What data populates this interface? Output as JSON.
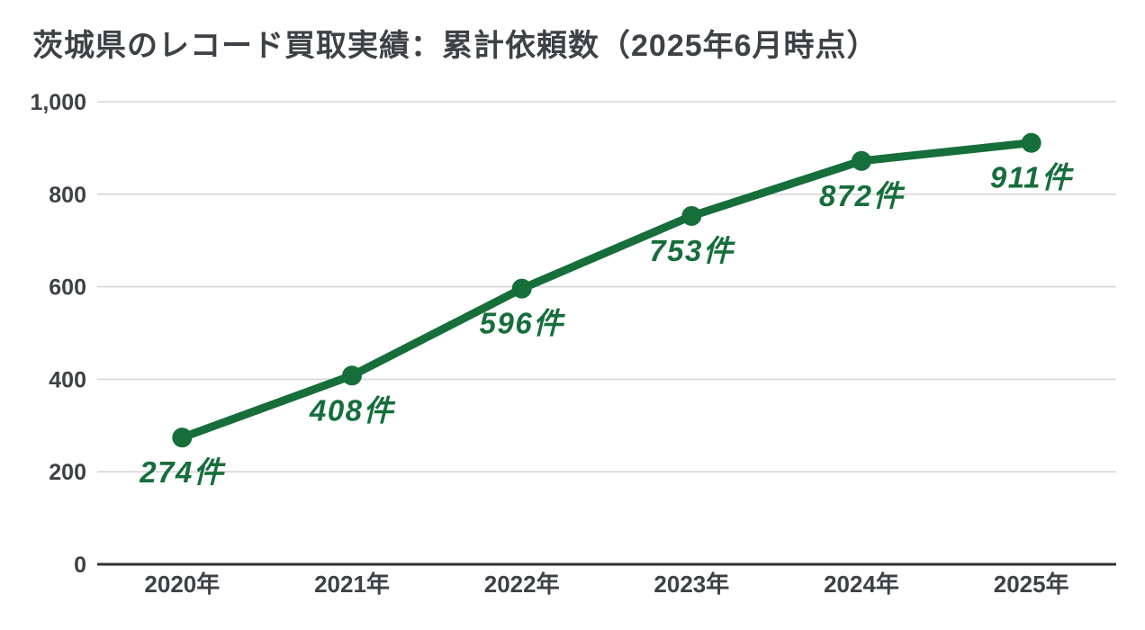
{
  "page": {
    "title": "茨城県のレコード買取実績：累計依頼数（2025年6月時点）"
  },
  "colors": {
    "accent_green": "#166e3b",
    "text_dark": "#3e4145",
    "gridline": "#d6d6d6",
    "axis_line": "#2f3134",
    "background": "#ffffff"
  },
  "chart_data": {
    "type": "line",
    "title": "茨城県のレコード買取実績：累計依頼数（2025年6月時点）",
    "categories": [
      "2020年",
      "2021年",
      "2022年",
      "2023年",
      "2024年",
      "2025年"
    ],
    "values": [
      274,
      408,
      596,
      753,
      872,
      911
    ],
    "point_labels": [
      "274件",
      "408件",
      "596件",
      "753件",
      "872件",
      "911件"
    ],
    "ylim": [
      0,
      1000
    ],
    "yticks": [
      0,
      200,
      400,
      600,
      800,
      1000
    ],
    "ytick_labels": [
      "0",
      "200",
      "400",
      "600",
      "800",
      "1,000"
    ],
    "xlabel": "",
    "ylabel": "",
    "grid": true,
    "legend_position": "none"
  }
}
